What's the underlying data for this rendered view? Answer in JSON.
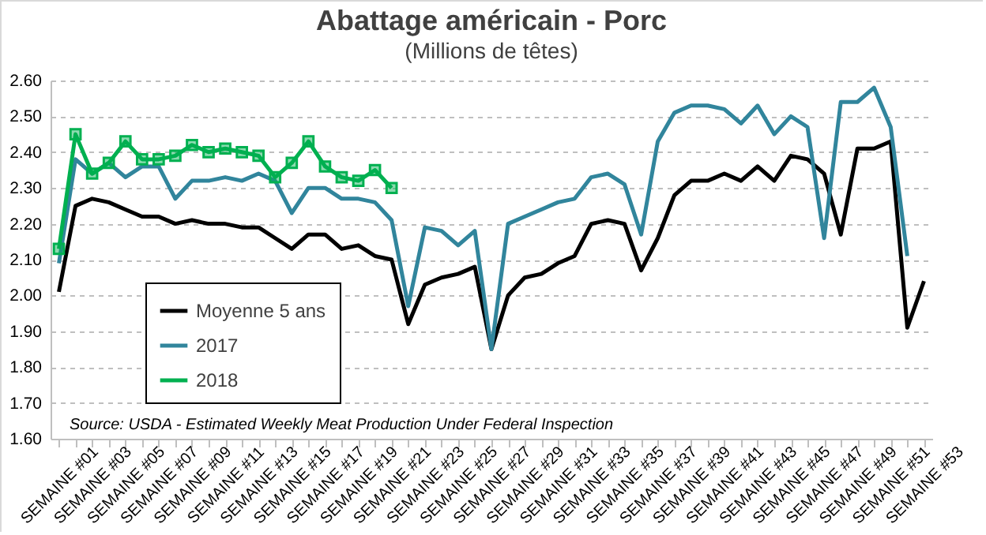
{
  "chart_data": {
    "type": "line",
    "title": "Abattage américain - Porc",
    "subtitle": "(Millions de têtes)",
    "annotations": [
      "Source: USDA - Estimated Weekly Meat Production Under Federal Inspection"
    ],
    "categories": [
      "SEMAINE #01",
      null,
      "SEMAINE #03",
      null,
      "SEMAINE #05",
      null,
      "SEMAINE #07",
      null,
      "SEMAINE #09",
      null,
      "SEMAINE #11",
      null,
      "SEMAINE #13",
      null,
      "SEMAINE #15",
      null,
      "SEMAINE #17",
      null,
      "SEMAINE #19",
      null,
      "SEMAINE #21",
      null,
      "SEMAINE #23",
      null,
      "SEMAINE #25",
      null,
      "SEMAINE #27",
      null,
      "SEMAINE #29",
      null,
      "SEMAINE #31",
      null,
      "SEMAINE #33",
      null,
      "SEMAINE #35",
      null,
      "SEMAINE #37",
      null,
      "SEMAINE #39",
      null,
      "SEMAINE #41",
      null,
      "SEMAINE #43",
      null,
      "SEMAINE #45",
      null,
      "SEMAINE #47",
      null,
      "SEMAINE #49",
      null,
      "SEMAINE #51",
      null,
      "SEMAINE #53"
    ],
    "series": [
      {
        "name": "Moyenne 5 ans",
        "color": "#000000",
        "marker": "none",
        "values": [
          2.01,
          2.25,
          2.27,
          2.26,
          2.24,
          2.22,
          2.22,
          2.2,
          2.21,
          2.2,
          2.2,
          2.19,
          2.19,
          2.16,
          2.13,
          2.17,
          2.17,
          2.13,
          2.14,
          2.11,
          2.1,
          1.92,
          2.03,
          2.05,
          2.06,
          2.08,
          1.85,
          2.0,
          2.05,
          2.06,
          2.09,
          2.11,
          2.2,
          2.21,
          2.2,
          2.07,
          2.16,
          2.28,
          2.32,
          2.32,
          2.34,
          2.32,
          2.36,
          2.32,
          2.39,
          2.38,
          2.34,
          2.17,
          2.41,
          2.41,
          2.43,
          1.91,
          2.04
        ]
      },
      {
        "name": "2017",
        "color": "#31859c",
        "marker": "none",
        "values": [
          2.09,
          2.38,
          2.34,
          2.37,
          2.33,
          2.36,
          2.36,
          2.27,
          2.32,
          2.32,
          2.33,
          2.32,
          2.34,
          2.32,
          2.23,
          2.3,
          2.3,
          2.27,
          2.27,
          2.26,
          2.21,
          1.97,
          2.19,
          2.18,
          2.14,
          2.18,
          1.85,
          2.2,
          2.22,
          2.24,
          2.26,
          2.27,
          2.33,
          2.34,
          2.31,
          2.17,
          2.43,
          2.51,
          2.53,
          2.53,
          2.52,
          2.48,
          2.53,
          2.45,
          2.5,
          2.47,
          2.16,
          2.54,
          2.54,
          2.58,
          2.47,
          2.11,
          null
        ]
      },
      {
        "name": "2018",
        "color": "#00b050",
        "marker": "square",
        "values": [
          2.13,
          2.45,
          2.34,
          2.37,
          2.43,
          2.38,
          2.38,
          2.39,
          2.42,
          2.4,
          2.41,
          2.4,
          2.39,
          2.33,
          2.37,
          2.43,
          2.36,
          2.33,
          2.32,
          2.35,
          2.3,
          null,
          null,
          null,
          null,
          null,
          null,
          null,
          null,
          null,
          null,
          null,
          null,
          null,
          null,
          null,
          null,
          null,
          null,
          null,
          null,
          null,
          null,
          null,
          null,
          null,
          null,
          null,
          null,
          null,
          null,
          null,
          null
        ]
      }
    ],
    "ylim": [
      1.6,
      2.6
    ],
    "yticks": [
      {
        "value": 1.6,
        "label": "1.60"
      },
      {
        "value": 1.7,
        "label": "1.70"
      },
      {
        "value": 1.8,
        "label": "1.80"
      },
      {
        "value": 1.9,
        "label": "1.90"
      },
      {
        "value": 2.0,
        "label": "2.00"
      },
      {
        "value": 2.1,
        "label": "2.10"
      },
      {
        "value": 2.2,
        "label": "2.20"
      },
      {
        "value": 2.3,
        "label": "2.30"
      },
      {
        "value": 2.4,
        "label": "2.40"
      },
      {
        "value": 2.5,
        "label": "2.50"
      },
      {
        "value": 2.6,
        "label": "2.60"
      }
    ],
    "grid": "y",
    "legend": "bottom left",
    "line_style": "solid"
  }
}
